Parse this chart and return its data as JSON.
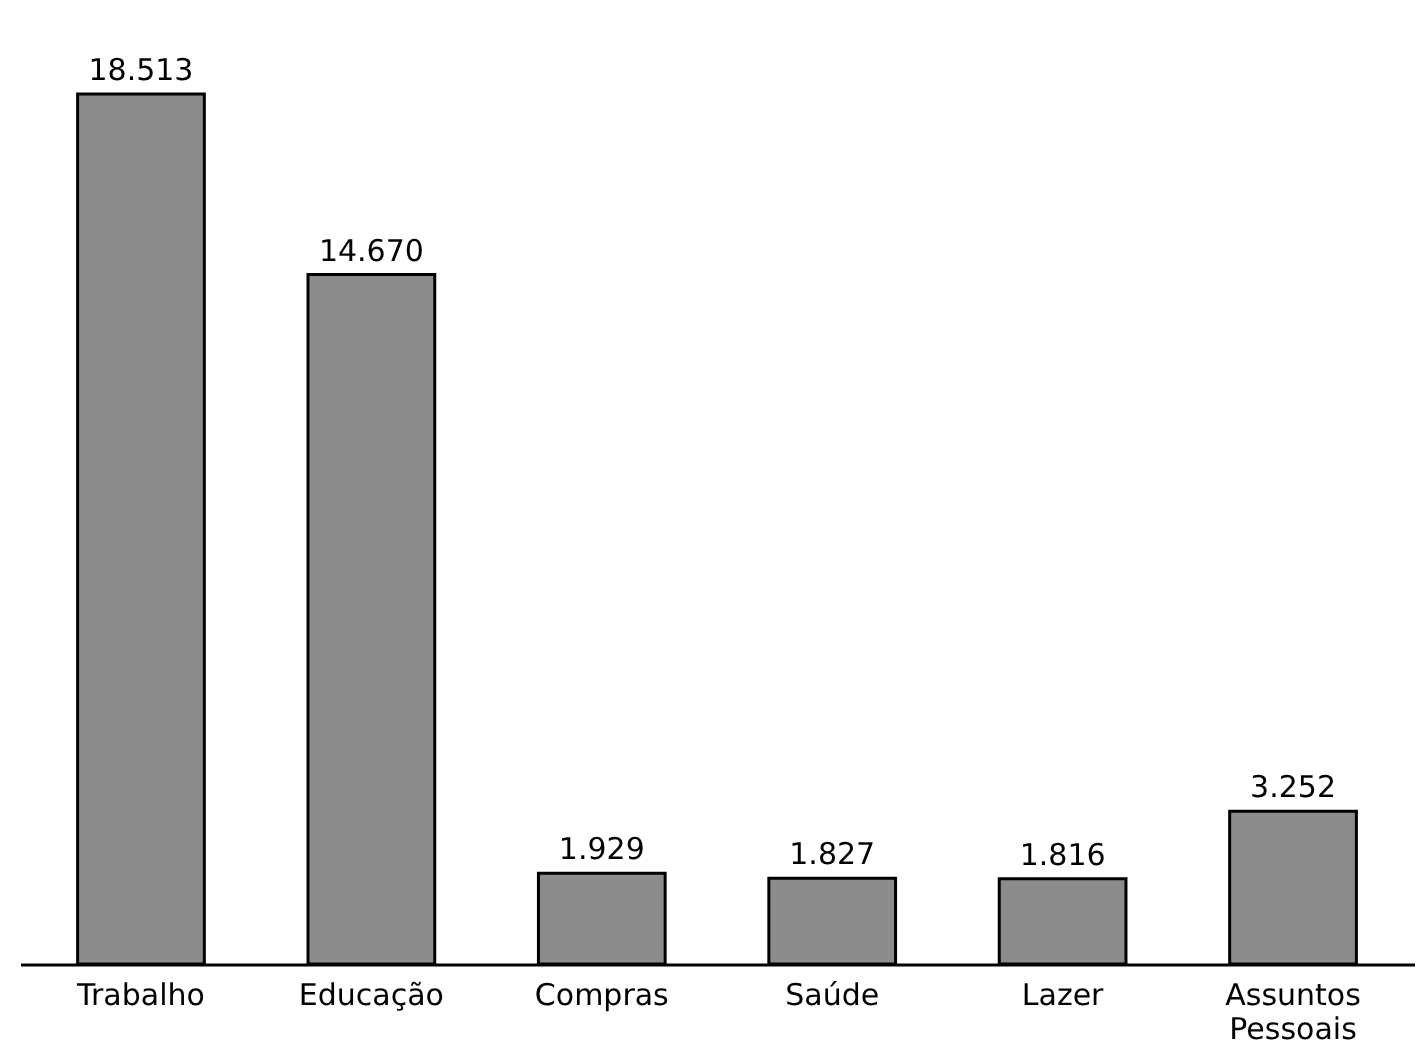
{
  "chart_data": {
    "type": "bar",
    "categories": [
      "Trabalho",
      "Educação",
      "Compras",
      "Saúde",
      "Lazer",
      "Assuntos Pessoais"
    ],
    "values": [
      18513,
      14670,
      1929,
      1827,
      1816,
      3252
    ],
    "value_labels": [
      "18.513",
      "14.670",
      "1.929",
      "1.827",
      "1.816",
      "3.252"
    ],
    "color": "#8c8c8c",
    "tick_labels": "x"
  }
}
